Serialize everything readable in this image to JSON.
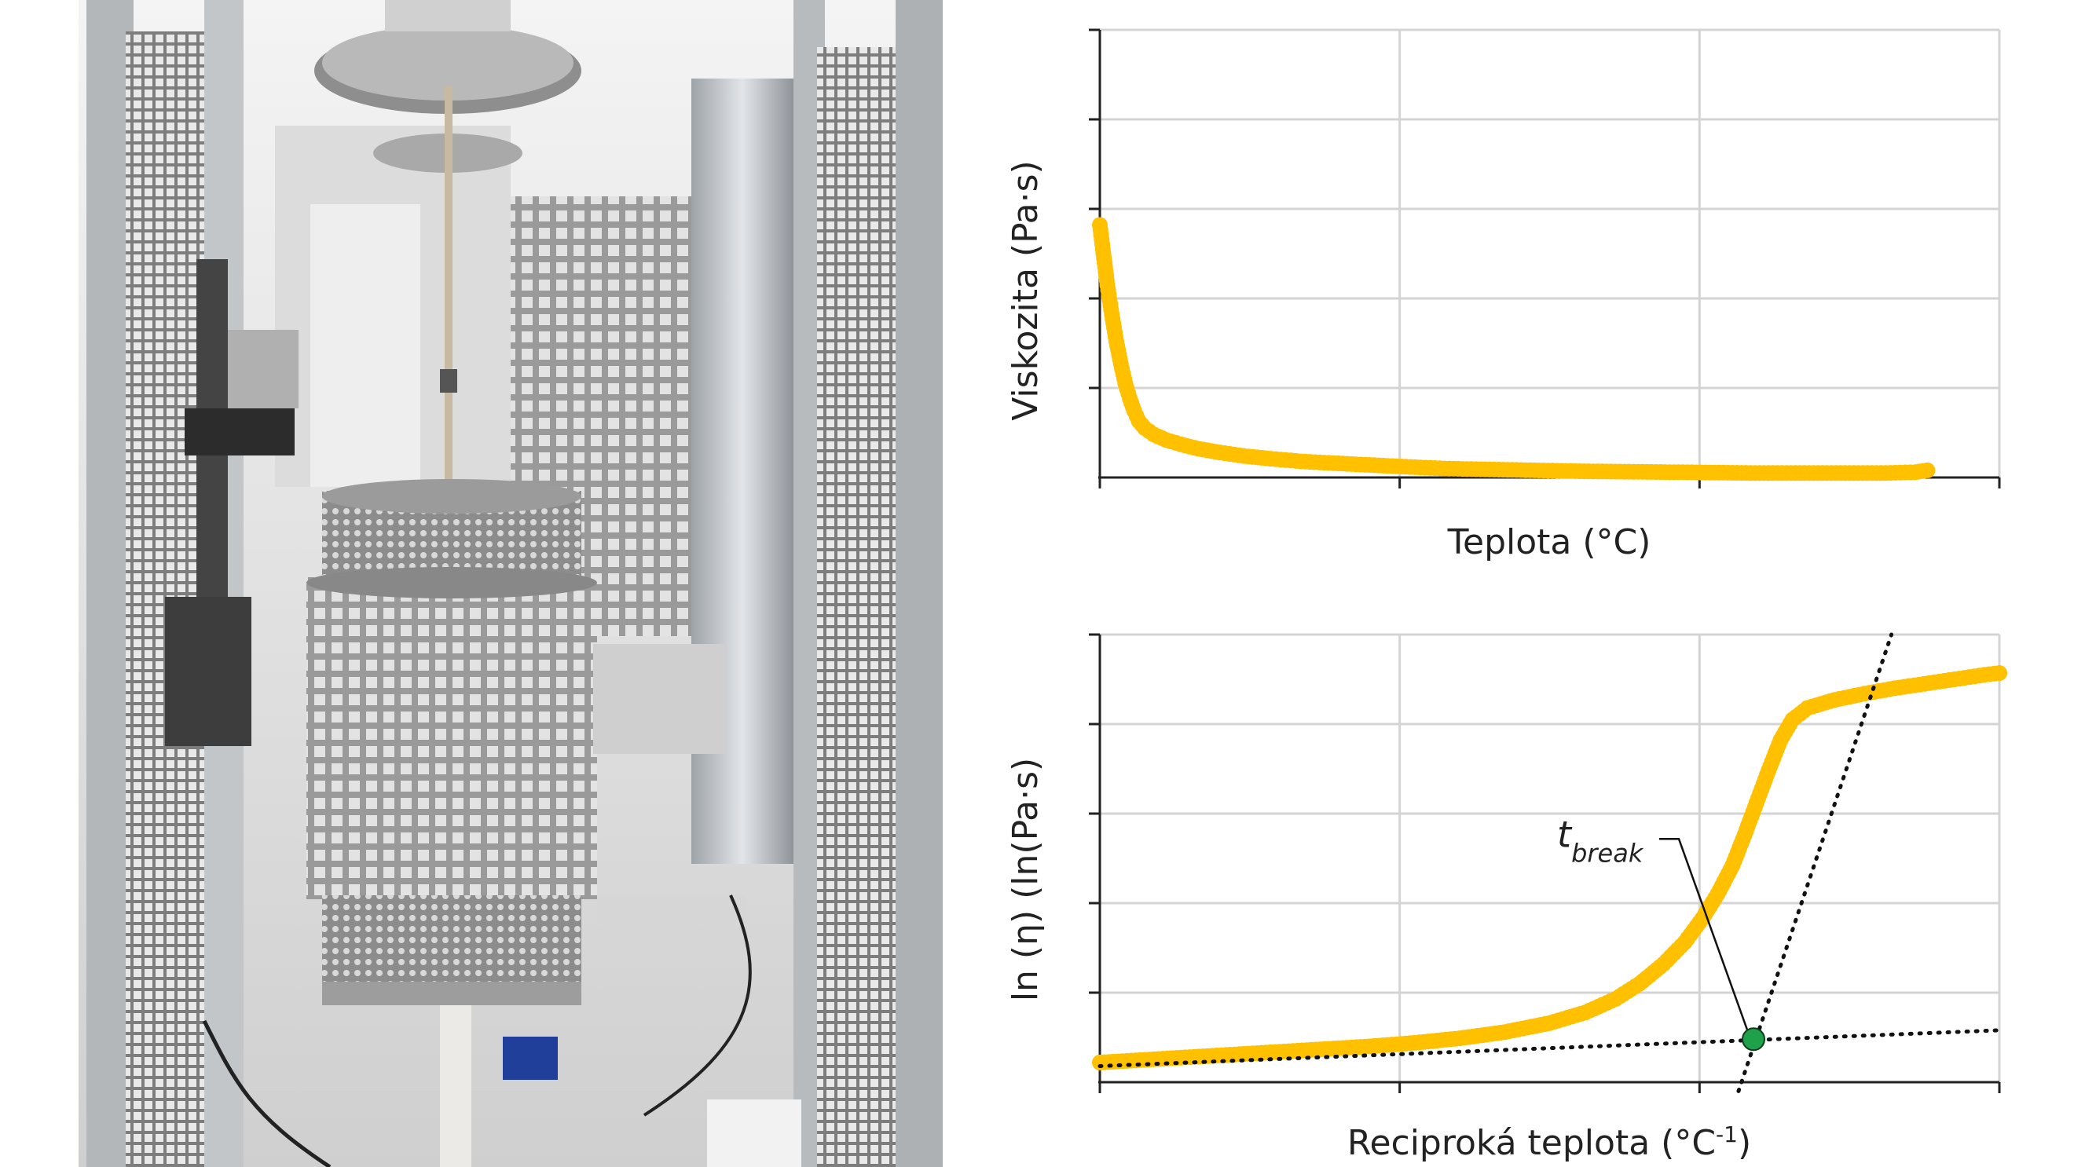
{
  "image_caption_photo": "",
  "chart_data": [
    {
      "type": "scatter",
      "title": "",
      "xlabel": "Teplota (°C)",
      "ylabel": "Viskozita (Pa·s)",
      "xlim": [
        0,
        3
      ],
      "ylim": [
        0,
        5
      ],
      "grid": true,
      "tick_labels_shown": false,
      "marker_color": "#FFC000",
      "points": [
        [
          0.0,
          2.82
        ],
        [
          0.01,
          2.55
        ],
        [
          0.025,
          2.15
        ],
        [
          0.04,
          1.82
        ],
        [
          0.055,
          1.52
        ],
        [
          0.07,
          1.27
        ],
        [
          0.085,
          1.05
        ],
        [
          0.1,
          0.88
        ],
        [
          0.115,
          0.74
        ],
        [
          0.13,
          0.63
        ],
        [
          0.15,
          0.55
        ],
        [
          0.18,
          0.48
        ],
        [
          0.22,
          0.42
        ],
        [
          0.27,
          0.37
        ],
        [
          0.33,
          0.32
        ],
        [
          0.4,
          0.28
        ],
        [
          0.48,
          0.24
        ],
        [
          0.57,
          0.21
        ],
        [
          0.67,
          0.18
        ],
        [
          0.78,
          0.16
        ],
        [
          0.9,
          0.14
        ],
        [
          1.02,
          0.12
        ],
        [
          1.15,
          0.1
        ],
        [
          1.3,
          0.09
        ],
        [
          1.45,
          0.08
        ],
        [
          1.6,
          0.07
        ],
        [
          1.75,
          0.065
        ],
        [
          1.9,
          0.06
        ],
        [
          2.05,
          0.055
        ],
        [
          2.2,
          0.05
        ],
        [
          2.35,
          0.05
        ],
        [
          2.5,
          0.05
        ],
        [
          2.62,
          0.05
        ],
        [
          2.72,
          0.06
        ],
        [
          2.76,
          0.08
        ]
      ]
    },
    {
      "type": "scatter",
      "title": "",
      "xlabel": "Reciproká teplota (°C-1)",
      "xlabel_main": "Reciproká teplota (°C",
      "xlabel_sup": "-1",
      "xlabel_close": ")",
      "ylabel": "ln (η) (ln(Pa·s)",
      "xlim": [
        0,
        3
      ],
      "ylim": [
        0,
        5
      ],
      "grid": true,
      "tick_labels_shown": false,
      "marker_color": "#FFC000",
      "points": [
        [
          0.0,
          0.22
        ],
        [
          0.15,
          0.25
        ],
        [
          0.3,
          0.28
        ],
        [
          0.45,
          0.31
        ],
        [
          0.6,
          0.34
        ],
        [
          0.75,
          0.37
        ],
        [
          0.9,
          0.4
        ],
        [
          1.05,
          0.44
        ],
        [
          1.2,
          0.49
        ],
        [
          1.35,
          0.56
        ],
        [
          1.5,
          0.66
        ],
        [
          1.62,
          0.78
        ],
        [
          1.72,
          0.93
        ],
        [
          1.8,
          1.1
        ],
        [
          1.88,
          1.32
        ],
        [
          1.95,
          1.56
        ],
        [
          2.01,
          1.83
        ],
        [
          2.06,
          2.1
        ],
        [
          2.11,
          2.42
        ],
        [
          2.15,
          2.76
        ],
        [
          2.19,
          3.12
        ],
        [
          2.23,
          3.48
        ],
        [
          2.27,
          3.82
        ],
        [
          2.31,
          4.05
        ],
        [
          2.36,
          4.18
        ],
        [
          2.45,
          4.27
        ],
        [
          2.55,
          4.34
        ],
        [
          2.65,
          4.4
        ],
        [
          2.75,
          4.45
        ],
        [
          2.85,
          4.5
        ],
        [
          2.95,
          4.55
        ],
        [
          3.0,
          4.57
        ]
      ],
      "fit_lines": [
        {
          "name": "",
          "points": [
            [
              0.0,
              0.18
            ],
            [
              3.0,
              0.58
            ]
          ],
          "style": "dotted"
        },
        {
          "name": "",
          "points": [
            [
              2.13,
              -0.1
            ],
            [
              2.64,
              5.0
            ]
          ],
          "style": "dotted"
        }
      ],
      "break_point": {
        "label_base": "t",
        "label_sub": "break",
        "x": 2.18,
        "y": 0.48,
        "color": "#1FA04A"
      }
    }
  ]
}
